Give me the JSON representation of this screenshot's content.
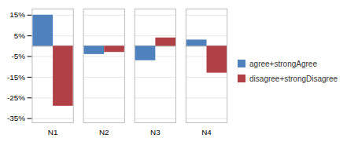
{
  "chart_data": {
    "type": "bar",
    "categories": [
      "N1",
      "N2",
      "N3",
      "N4"
    ],
    "series": [
      {
        "name": "agree+strongAgree",
        "color": "#4F81BD",
        "values": [
          15,
          -4,
          -7,
          3
        ]
      },
      {
        "name": "disagree+strongDisagree",
        "color": "#B04045",
        "values": [
          -29,
          -3,
          4,
          -13
        ]
      }
    ],
    "ylim": [
      -37,
      18
    ],
    "yticks": [
      {
        "value": -35,
        "label": "-35%"
      },
      {
        "value": -25,
        "label": "-25%"
      },
      {
        "value": -15,
        "label": "-15%"
      },
      {
        "value": -5,
        "label": "-5%"
      },
      {
        "value": 5,
        "label": "5%"
      },
      {
        "value": 15,
        "label": "15%"
      }
    ],
    "grid": true,
    "legend": "right"
  }
}
